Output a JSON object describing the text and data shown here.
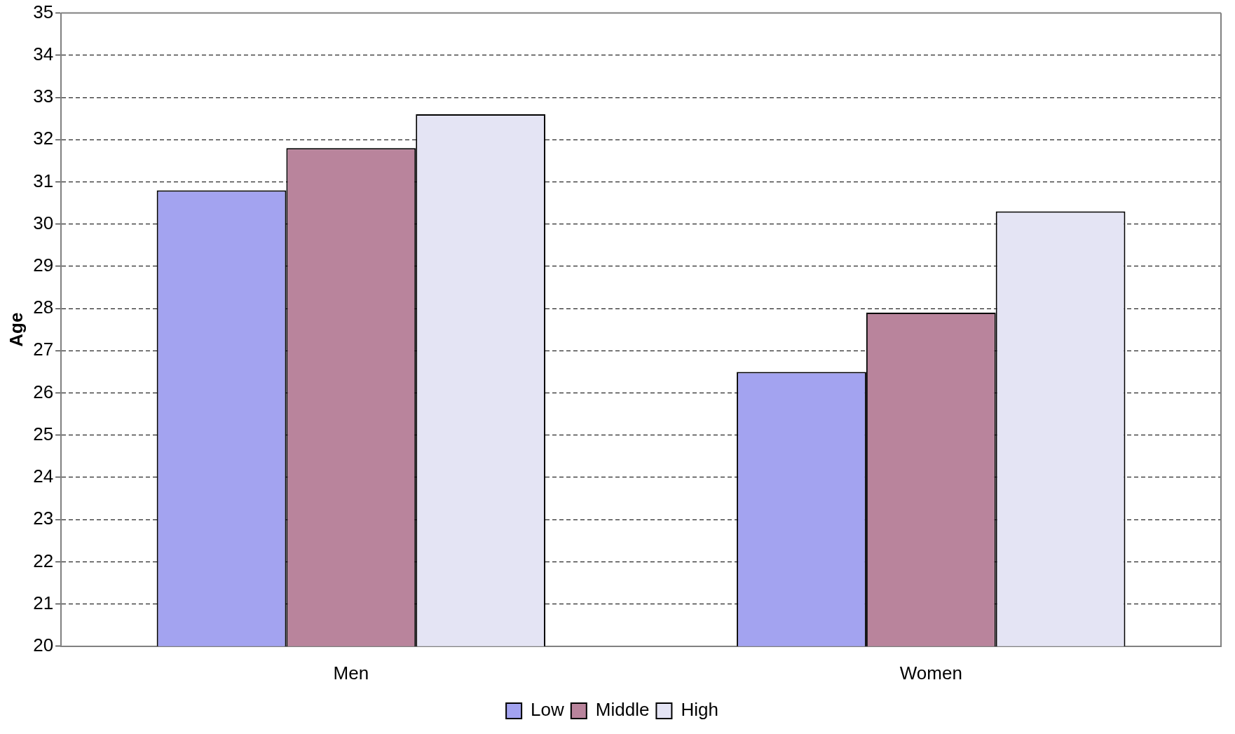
{
  "chart_data": {
    "type": "bar",
    "ylabel": "Age",
    "categories": [
      "Men",
      "Women"
    ],
    "series": [
      {
        "name": "Low",
        "color": "#a3a3f0",
        "values": [
          30.8,
          26.5
        ]
      },
      {
        "name": "Middle",
        "color": "#b9849c",
        "values": [
          31.8,
          27.9
        ]
      },
      {
        "name": "High",
        "color": "#e4e4f4",
        "values": [
          32.6,
          30.3
        ]
      }
    ],
    "ylim": [
      20,
      35
    ],
    "yticks": [
      20,
      21,
      22,
      23,
      24,
      25,
      26,
      27,
      28,
      29,
      30,
      31,
      32,
      33,
      34,
      35
    ],
    "grid": "y",
    "legend": "bottom"
  }
}
